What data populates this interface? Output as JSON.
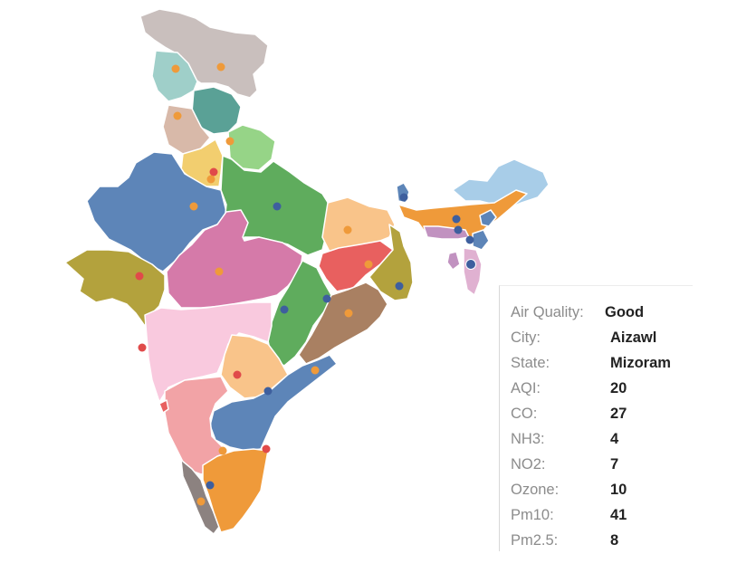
{
  "tooltip": {
    "rows": [
      {
        "label": "Air Quality:",
        "value": "Good"
      },
      {
        "label": "City:",
        "value": "Aizawl"
      },
      {
        "label": "State:",
        "value": "Mizoram"
      },
      {
        "label": "AQI:",
        "value": "20"
      },
      {
        "label": "CO:",
        "value": "27"
      },
      {
        "label": "NH3:",
        "value": "4"
      },
      {
        "label": "NO2:",
        "value": "7"
      },
      {
        "label": "Ozone:",
        "value": "10"
      },
      {
        "label": "Pm10:",
        "value": "41"
      },
      {
        "label": "Pm2.5:",
        "value": "8"
      }
    ]
  },
  "colors": {
    "ladakh": "#c9bfbd",
    "jammu-kashmir": "#9fcfc9",
    "himachal": "#5aa196",
    "punjab": "#d8b9a9",
    "uttarakhand": "#96d487",
    "haryana": "#f2ce6f",
    "rajasthan": "#5d85b8",
    "uttar-pradesh": "#5fac5d",
    "bihar": "#f9c48a",
    "gujarat": "#b3a23d",
    "madhya-pradesh": "#d57aa9",
    "jharkhand": "#e8605f",
    "west-bengal": "#b3a23d",
    "chhattisgarh": "#5fac5d",
    "odisha": "#a98062",
    "maharashtra": "#f9c9de",
    "telangana": "#f9c48a",
    "andhra-pradesh": "#5d85b8",
    "karnataka": "#f2a3a6",
    "tamil-nadu": "#ef9a3a",
    "kerala": "#8c8280",
    "goa": "#e8605f",
    "sikkim": "#5d85b8",
    "arunachal": "#a8cde8",
    "assam": "#ef9a3a",
    "meghalaya": "#c192c0",
    "mizoram": "#e0b1d1",
    "manipur": "#5d85b8",
    "nagaland": "#5d85b8",
    "tripura": "#c192c0",
    "marker-orange": "#ef9a3a",
    "marker-red": "#e04a4a",
    "marker-blue": "#3e5f9e"
  }
}
